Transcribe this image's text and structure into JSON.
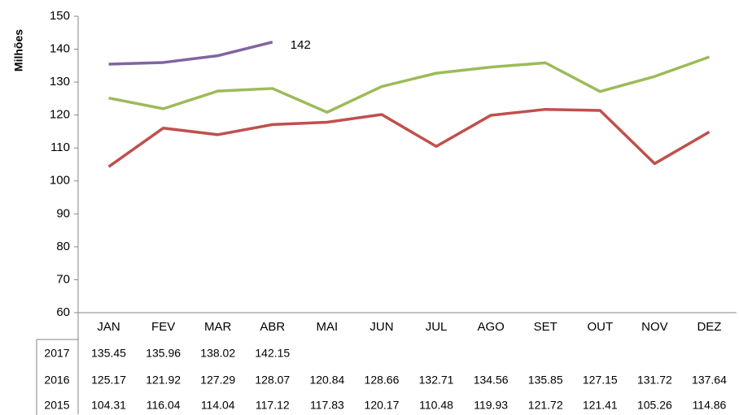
{
  "chart_data": {
    "type": "line",
    "y_label": "Milhões",
    "categories": [
      "JAN",
      "FEV",
      "MAR",
      "ABR",
      "MAI",
      "JUN",
      "JUL",
      "AGO",
      "SET",
      "OUT",
      "NOV",
      "DEZ"
    ],
    "series": [
      {
        "name": "2017",
        "color": "#8064a2",
        "values": [
          135.45,
          135.96,
          138.02,
          142.15,
          null,
          null,
          null,
          null,
          null,
          null,
          null,
          null
        ],
        "value_labels": [
          null,
          null,
          null,
          "142",
          null,
          null,
          null,
          null,
          null,
          null,
          null,
          null
        ]
      },
      {
        "name": "2016",
        "color": "#9bbb59",
        "values": [
          125.17,
          121.92,
          127.29,
          128.07,
          120.84,
          128.66,
          132.71,
          134.56,
          135.85,
          127.15,
          131.72,
          137.64
        ]
      },
      {
        "name": "2015",
        "color": "#c0504d",
        "values": [
          104.31,
          116.04,
          114.04,
          117.12,
          117.83,
          120.17,
          110.48,
          119.93,
          121.72,
          121.41,
          105.26,
          114.86
        ]
      }
    ],
    "ylim": [
      60,
      150
    ],
    "yticks": [
      60,
      70,
      80,
      90,
      100,
      110,
      120,
      130,
      140,
      150
    ],
    "grid": false
  }
}
